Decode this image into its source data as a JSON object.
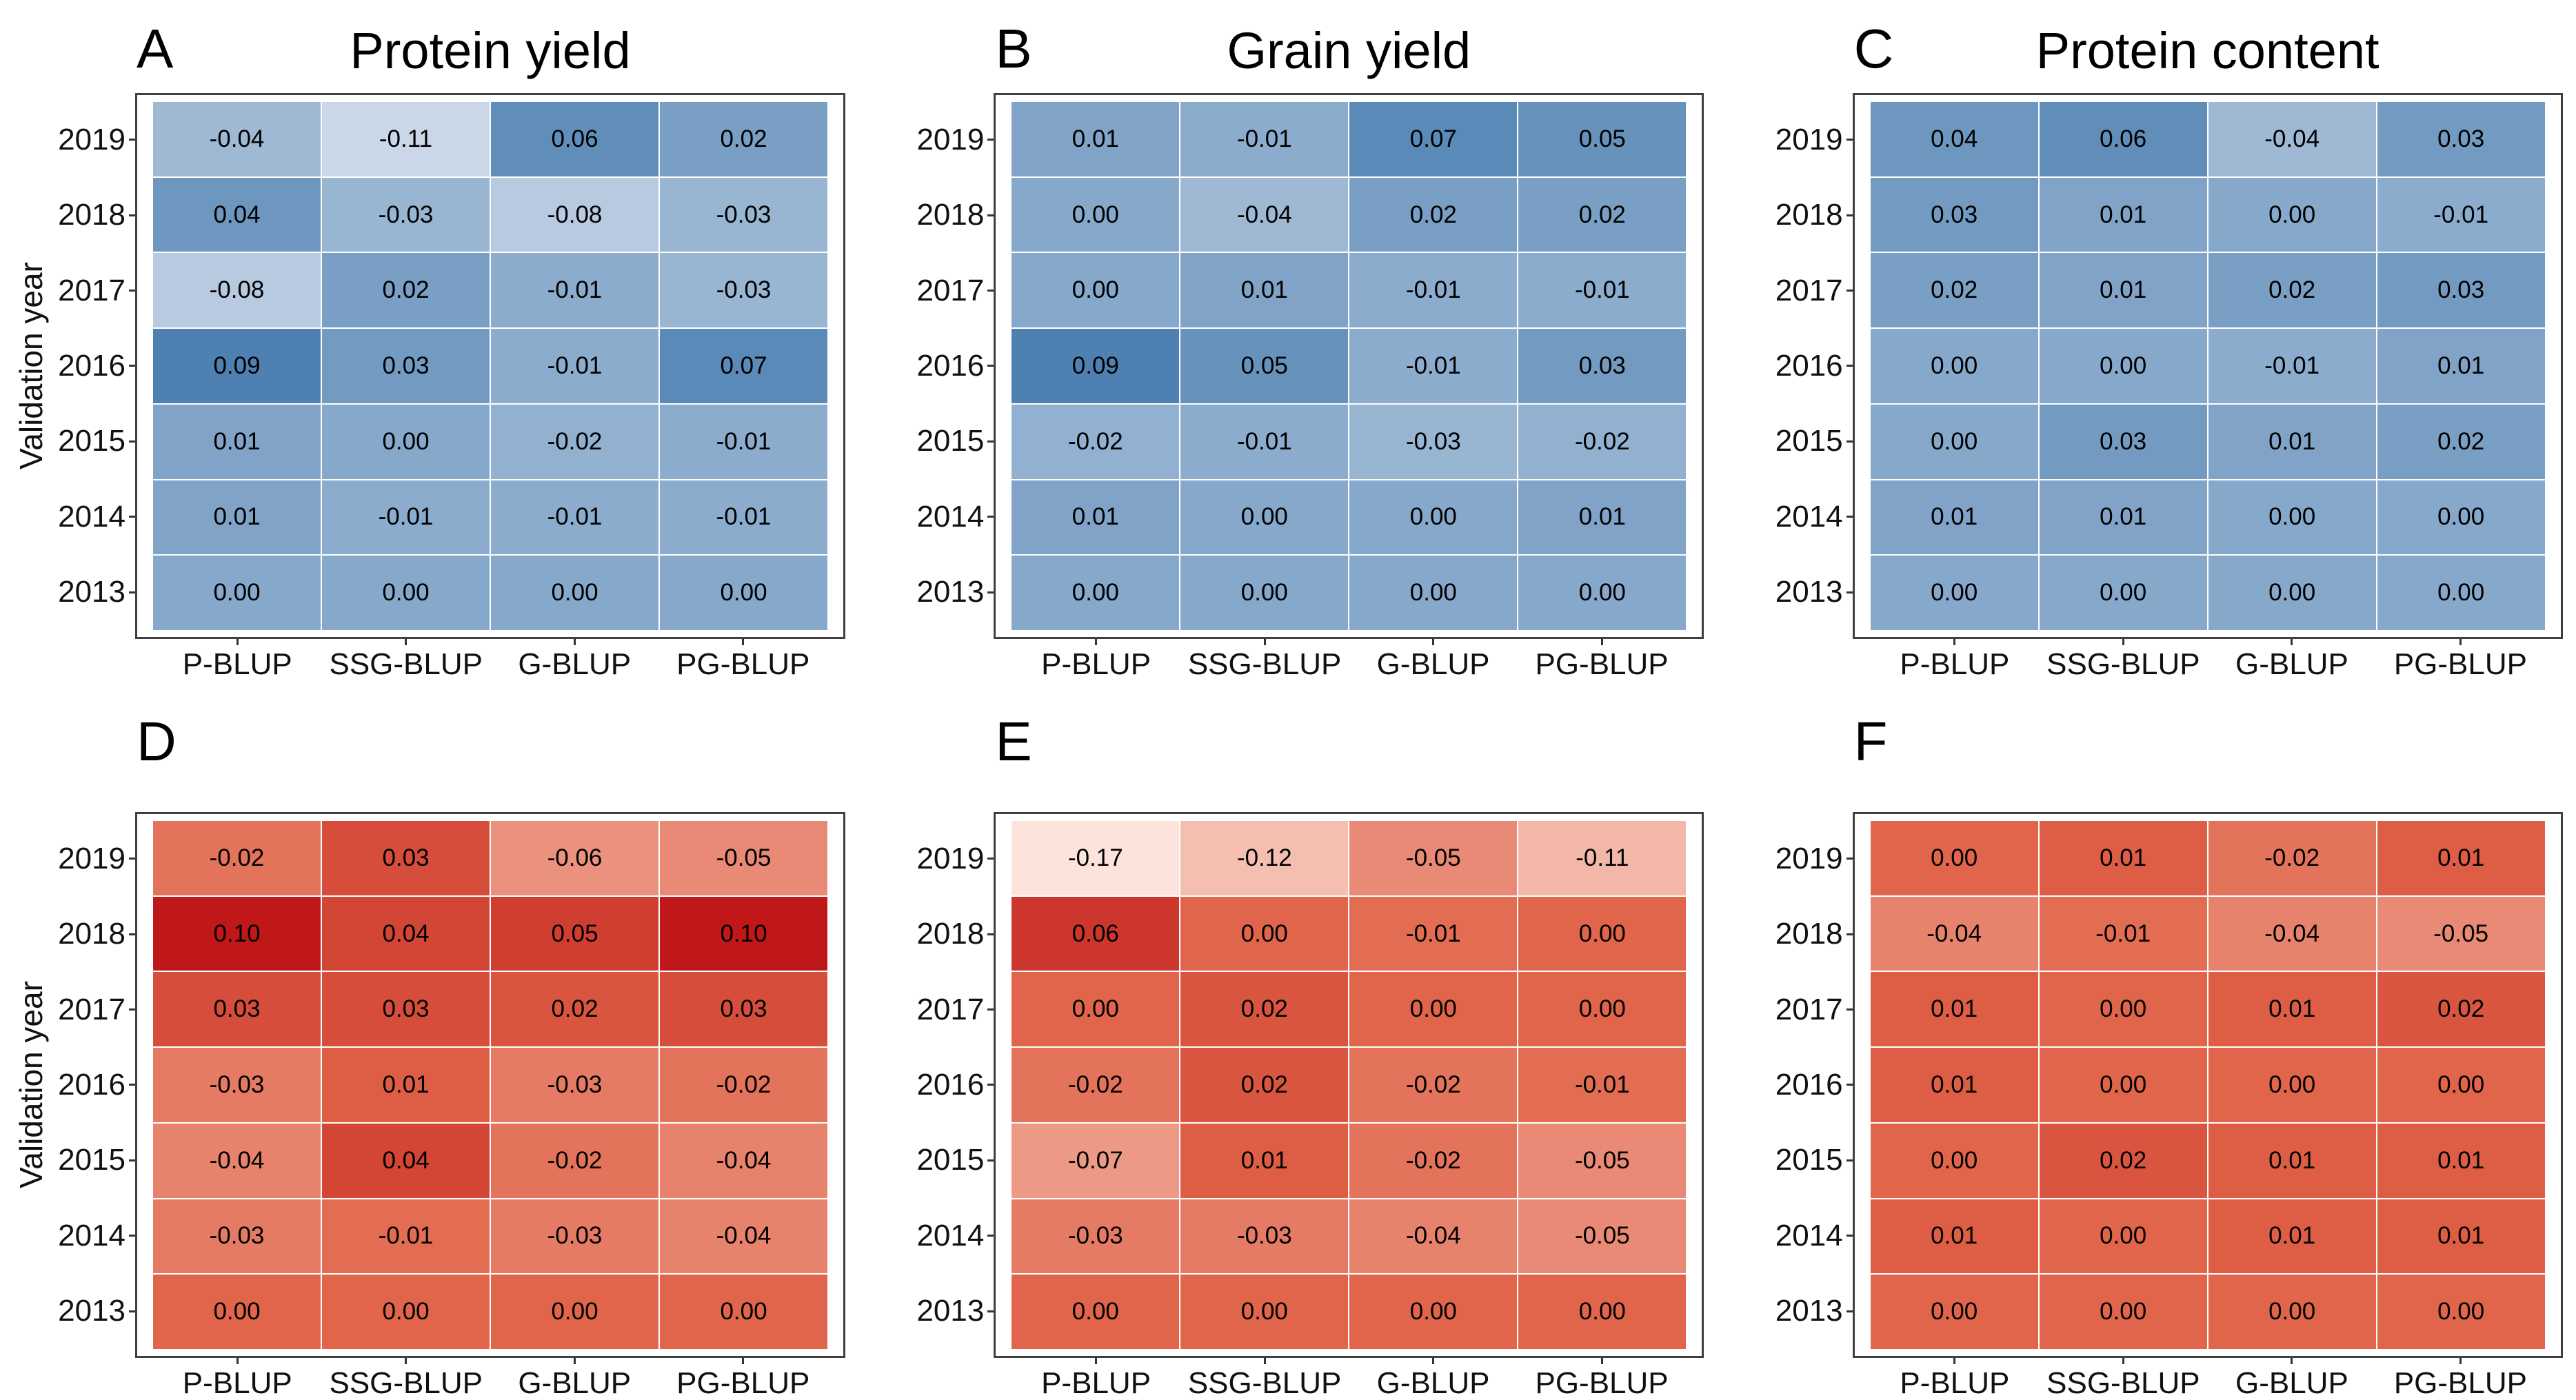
{
  "figure": {
    "y_axis_title": "Validation year",
    "years": [
      "2019",
      "2018",
      "2017",
      "2016",
      "2015",
      "2014",
      "2013"
    ],
    "methods": [
      "P-BLUP",
      "SSG-BLUP",
      "G-BLUP",
      "PG-BLUP"
    ]
  },
  "colors": {
    "background": "#ffffff",
    "panel_border": "#404040",
    "tick": "#333333",
    "text": "#000000"
  },
  "scales": {
    "blue": {
      "domain": [
        -0.11,
        0.09
      ],
      "stops": [
        {
          "t": 0.0,
          "color": "#cad7e8"
        },
        {
          "t": 1.0,
          "color": "#4e81b1"
        }
      ]
    },
    "red": {
      "domain": [
        -0.17,
        0.1
      ],
      "stops": [
        {
          "t": 0.0,
          "color": "#fce4dc"
        },
        {
          "t": 0.63,
          "color": "#e0654a"
        },
        {
          "t": 1.0,
          "color": "#c01718"
        }
      ]
    }
  },
  "chart_data": [
    {
      "panel": "A",
      "title": "Protein yield",
      "type": "heatmap",
      "palette": "blue",
      "xlabel": "",
      "ylabel": "Validation year",
      "x_labels": [
        "P-BLUP",
        "SSG-BLUP",
        "G-BLUP",
        "PG-BLUP"
      ],
      "y_labels": [
        "2019",
        "2018",
        "2017",
        "2016",
        "2015",
        "2014",
        "2013"
      ],
      "values": [
        [
          -0.04,
          -0.11,
          0.06,
          0.02
        ],
        [
          0.04,
          -0.03,
          -0.08,
          -0.03
        ],
        [
          -0.08,
          0.02,
          -0.01,
          -0.03
        ],
        [
          0.09,
          0.03,
          -0.01,
          0.07
        ],
        [
          0.01,
          0.0,
          -0.02,
          -0.01
        ],
        [
          0.01,
          -0.01,
          -0.01,
          -0.01
        ],
        [
          0.0,
          0.0,
          0.0,
          0.0
        ]
      ]
    },
    {
      "panel": "B",
      "title": "Grain yield",
      "type": "heatmap",
      "palette": "blue",
      "xlabel": "",
      "ylabel": "",
      "x_labels": [
        "P-BLUP",
        "SSG-BLUP",
        "G-BLUP",
        "PG-BLUP"
      ],
      "y_labels": [
        "2019",
        "2018",
        "2017",
        "2016",
        "2015",
        "2014",
        "2013"
      ],
      "values": [
        [
          0.01,
          -0.01,
          0.07,
          0.05
        ],
        [
          0.0,
          -0.04,
          0.02,
          0.02
        ],
        [
          0.0,
          0.01,
          -0.01,
          -0.01
        ],
        [
          0.09,
          0.05,
          -0.01,
          0.03
        ],
        [
          -0.02,
          -0.01,
          -0.03,
          -0.02
        ],
        [
          0.01,
          0.0,
          0.0,
          0.01
        ],
        [
          0.0,
          0.0,
          0.0,
          0.0
        ]
      ]
    },
    {
      "panel": "C",
      "title": "Protein content",
      "type": "heatmap",
      "palette": "blue",
      "xlabel": "",
      "ylabel": "",
      "x_labels": [
        "P-BLUP",
        "SSG-BLUP",
        "G-BLUP",
        "PG-BLUP"
      ],
      "y_labels": [
        "2019",
        "2018",
        "2017",
        "2016",
        "2015",
        "2014",
        "2013"
      ],
      "values": [
        [
          0.04,
          0.06,
          -0.04,
          0.03
        ],
        [
          0.03,
          0.01,
          0.0,
          -0.01
        ],
        [
          0.02,
          0.01,
          0.02,
          0.03
        ],
        [
          0.0,
          0.0,
          -0.01,
          0.01
        ],
        [
          0.0,
          0.03,
          0.01,
          0.02
        ],
        [
          0.01,
          0.01,
          0.0,
          0.0
        ],
        [
          0.0,
          0.0,
          0.0,
          0.0
        ]
      ]
    },
    {
      "panel": "D",
      "title": "",
      "type": "heatmap",
      "palette": "red",
      "xlabel": "",
      "ylabel": "Validation year",
      "x_labels": [
        "P-BLUP",
        "SSG-BLUP",
        "G-BLUP",
        "PG-BLUP"
      ],
      "y_labels": [
        "2019",
        "2018",
        "2017",
        "2016",
        "2015",
        "2014",
        "2013"
      ],
      "values": [
        [
          -0.02,
          0.03,
          -0.06,
          -0.05
        ],
        [
          0.1,
          0.04,
          0.05,
          0.1
        ],
        [
          0.03,
          0.03,
          0.02,
          0.03
        ],
        [
          -0.03,
          0.01,
          -0.03,
          -0.02
        ],
        [
          -0.04,
          0.04,
          -0.02,
          -0.04
        ],
        [
          -0.03,
          -0.01,
          -0.03,
          -0.04
        ],
        [
          0.0,
          0.0,
          0.0,
          0.0
        ]
      ]
    },
    {
      "panel": "E",
      "title": "",
      "type": "heatmap",
      "palette": "red",
      "xlabel": "",
      "ylabel": "",
      "x_labels": [
        "P-BLUP",
        "SSG-BLUP",
        "G-BLUP",
        "PG-BLUP"
      ],
      "y_labels": [
        "2019",
        "2018",
        "2017",
        "2016",
        "2015",
        "2014",
        "2013"
      ],
      "values": [
        [
          -0.17,
          -0.12,
          -0.05,
          -0.11
        ],
        [
          0.06,
          0.0,
          -0.01,
          0.0
        ],
        [
          0.0,
          0.02,
          0.0,
          0.0
        ],
        [
          -0.02,
          0.02,
          -0.02,
          -0.01
        ],
        [
          -0.07,
          0.01,
          -0.02,
          -0.05
        ],
        [
          -0.03,
          -0.03,
          -0.04,
          -0.05
        ],
        [
          0.0,
          0.0,
          0.0,
          0.0
        ]
      ]
    },
    {
      "panel": "F",
      "title": "",
      "type": "heatmap",
      "palette": "red",
      "xlabel": "",
      "ylabel": "",
      "x_labels": [
        "P-BLUP",
        "SSG-BLUP",
        "G-BLUP",
        "PG-BLUP"
      ],
      "y_labels": [
        "2019",
        "2018",
        "2017",
        "2016",
        "2015",
        "2014",
        "2013"
      ],
      "values": [
        [
          0.0,
          0.01,
          -0.02,
          0.01
        ],
        [
          -0.04,
          -0.01,
          -0.04,
          -0.05
        ],
        [
          0.01,
          0.0,
          0.01,
          0.02
        ],
        [
          0.01,
          0.0,
          0.0,
          0.0
        ],
        [
          0.0,
          0.02,
          0.01,
          0.01
        ],
        [
          0.01,
          0.0,
          0.01,
          0.01
        ],
        [
          0.0,
          0.0,
          0.0,
          0.0
        ]
      ]
    }
  ]
}
